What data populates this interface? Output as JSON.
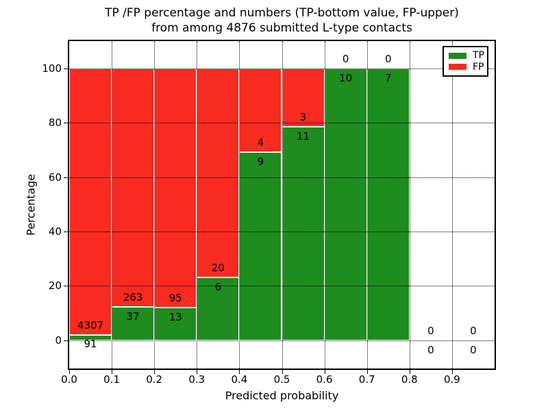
{
  "figure": {
    "title_line1": "TP /FP percentage and numbers (TP-bottom value, FP-upper)",
    "title_line2": "from among 4876 submitted L-type contacts"
  },
  "axes": {
    "xlabel": "Predicted probability",
    "ylabel": "Percentage"
  },
  "legend": {
    "position": "upper right",
    "entries": [
      {
        "label": "TP",
        "color": "#1e8c1e"
      },
      {
        "label": "FP",
        "color": "#f92a1f"
      }
    ]
  },
  "chart_data": {
    "type": "bar",
    "stacked": true,
    "title": "TP /FP percentage and numbers (TP-bottom value, FP-upper) from among 4876 submitted L-type contacts",
    "xlabel": "Predicted probability",
    "ylabel": "Percentage",
    "xlim": [
      0,
      1.0
    ],
    "ylim": [
      -10.4,
      110.1
    ],
    "xticks": [
      "0.0",
      "0.1",
      "0.2",
      "0.3",
      "0.4",
      "0.5",
      "0.6",
      "0.7",
      "0.8",
      "0.9"
    ],
    "yticks": [
      0,
      20,
      40,
      60,
      80,
      100
    ],
    "grid": "dotted",
    "bin_width": 0.1,
    "total_submitted": 4876,
    "bins": [
      {
        "x0": 0.0,
        "tp": 91,
        "fp": 4307,
        "tp_pct": 2.1
      },
      {
        "x0": 0.1,
        "tp": 37,
        "fp": 263,
        "tp_pct": 12.3
      },
      {
        "x0": 0.2,
        "tp": 13,
        "fp": 95,
        "tp_pct": 12.0
      },
      {
        "x0": 0.3,
        "tp": 6,
        "fp": 20,
        "tp_pct": 23.1
      },
      {
        "x0": 0.4,
        "tp": 9,
        "fp": 4,
        "tp_pct": 69.2
      },
      {
        "x0": 0.5,
        "tp": 11,
        "fp": 3,
        "tp_pct": 78.6
      },
      {
        "x0": 0.6,
        "tp": 10,
        "fp": 0,
        "tp_pct": 100
      },
      {
        "x0": 0.7,
        "tp": 7,
        "fp": 0,
        "tp_pct": 100
      },
      {
        "x0": 0.8,
        "tp": 0,
        "fp": 0,
        "tp_pct": null
      },
      {
        "x0": 0.9,
        "tp": 0,
        "fp": 0,
        "tp_pct": null
      }
    ],
    "series": [
      {
        "name": "TP",
        "color": "#1e8c1e",
        "values_pct": [
          2.1,
          12.3,
          12.0,
          23.1,
          69.2,
          78.6,
          100,
          100,
          null,
          null
        ]
      },
      {
        "name": "FP",
        "color": "#f92a1f",
        "values_pct": [
          97.9,
          87.7,
          88.0,
          76.9,
          30.8,
          21.4,
          0,
          0,
          null,
          null
        ]
      }
    ]
  }
}
